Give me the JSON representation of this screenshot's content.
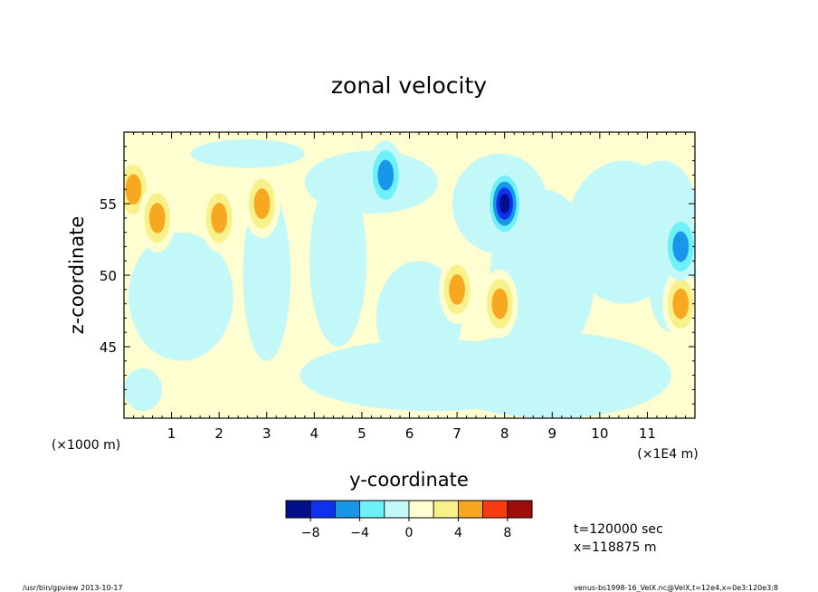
{
  "chart_data": {
    "type": "heatmap",
    "title": "zonal velocity",
    "xlabel": "y-coordinate",
    "ylabel": "z-coordinate",
    "x_scale_note": "(×1000 m)",
    "x_unit_note": "(×1E4 m)",
    "xlim": [
      0,
      12
    ],
    "ylim": [
      40,
      60
    ],
    "x_ticks": [
      "1",
      "2",
      "3",
      "4",
      "5",
      "6",
      "7",
      "8",
      "9",
      "10",
      "11"
    ],
    "y_ticks": [
      "45",
      "50",
      "55"
    ],
    "legend_position": "bottom-center",
    "colorbar": {
      "levels": [
        -10,
        -8,
        -6,
        -4,
        -2,
        0,
        2,
        4,
        6,
        8,
        10
      ],
      "tick_labels": [
        "−8",
        "−4",
        "0",
        "4",
        "8"
      ],
      "tick_values": [
        -8,
        -4,
        0,
        4,
        8
      ],
      "colors": [
        "#000f8c",
        "#1030f0",
        "#1896e8",
        "#6ef0f8",
        "#c2f8f8",
        "#fefed0",
        "#f8f088",
        "#f8a820",
        "#f83c10",
        "#a00c08"
      ]
    },
    "field_features": [
      {
        "y": 0.2,
        "z": 56,
        "value": 5,
        "label": "positive core near left edge"
      },
      {
        "y": 0.7,
        "z": 54,
        "value": 5,
        "label": "positive core"
      },
      {
        "y": 2.0,
        "z": 54,
        "value": 5,
        "label": "positive core"
      },
      {
        "y": 2.9,
        "z": 55,
        "value": 5,
        "label": "positive core"
      },
      {
        "y": 5.5,
        "z": 57,
        "value": -5,
        "label": "negative core"
      },
      {
        "y": 8.0,
        "z": 55,
        "value": -9,
        "label": "strongest negative core"
      },
      {
        "y": 7.0,
        "z": 49,
        "value": 5,
        "label": "positive filament"
      },
      {
        "y": 7.9,
        "z": 48,
        "value": 5,
        "label": "positive core"
      },
      {
        "y": 11.7,
        "z": 48,
        "value": 5,
        "label": "positive core near right edge"
      },
      {
        "y": 11.7,
        "z": 52,
        "value": -5,
        "label": "negative core"
      }
    ]
  },
  "annotations": {
    "time": "t=120000 sec",
    "position": "x=118875 m"
  },
  "footer": {
    "program": "/usr/bin/gpview  2013-10-17",
    "source": "venus-bs1998-16_VelX.nc@VelX,t=12e4,x=0e3:120e3:8"
  }
}
